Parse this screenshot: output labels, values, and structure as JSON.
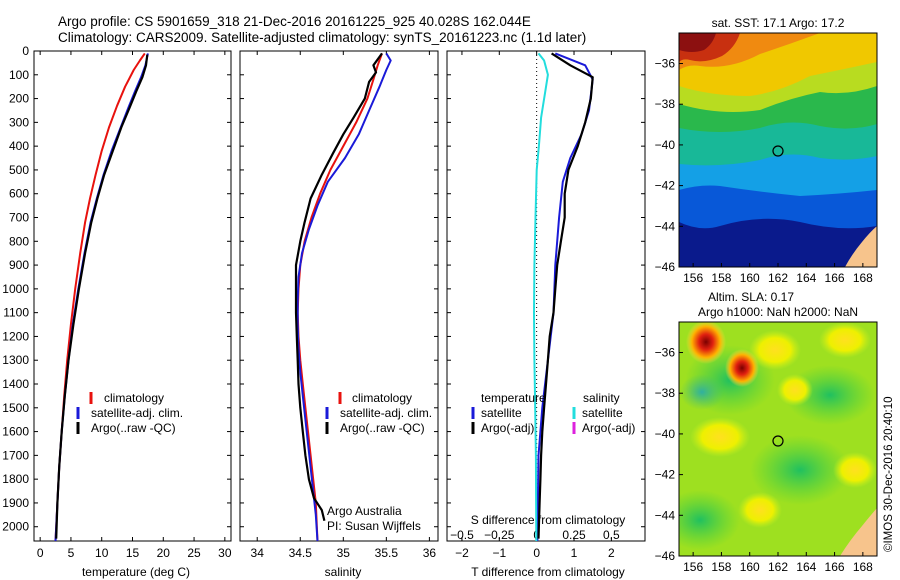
{
  "header": {
    "line1": "Argo profile: CS 5901659_318 21-Dec-2016 20161225_925 40.028S 162.044E",
    "line2": "Climatology: CARS2009. Satellite-adjusted climatology: synTS_20161223.nc (1.1d later)"
  },
  "footer": "©IMOS 30-Dec-2016 20:40:10",
  "depth_ticks": [
    "0",
    "100",
    "200",
    "300",
    "400",
    "500",
    "600",
    "700",
    "800",
    "900",
    "1000",
    "1100",
    "1200",
    "1300",
    "1400",
    "1500",
    "1600",
    "1700",
    "1800",
    "1900",
    "2000"
  ],
  "colors": {
    "climatology": "#e8120e",
    "satellite": "#1a1ad8",
    "argo": "#000000",
    "sal_satellite": "#22dddd",
    "sal_argo": "#dd22dd"
  },
  "chart_data": [
    {
      "type": "line",
      "id": "temperature",
      "xlabel": "temperature (deg C)",
      "xlim": [
        -1,
        31
      ],
      "ylim": [
        2060,
        0
      ],
      "xticks": [
        0,
        5,
        10,
        15,
        20,
        25,
        30
      ],
      "xtick_labels": [
        "0",
        "5",
        "10",
        "15",
        "20",
        "25",
        "30"
      ],
      "legend": [
        "climatology",
        "satellite-adj. clim.",
        "Argo(..raw -QC)"
      ],
      "series": [
        {
          "name": "climatology",
          "color": "climatology",
          "points": [
            [
              17,
              10
            ],
            [
              16.2,
              40
            ],
            [
              15.2,
              80
            ],
            [
              13.8,
              150
            ],
            [
              12.5,
              230
            ],
            [
              11.2,
              320
            ],
            [
              10,
              420
            ],
            [
              9,
              520
            ],
            [
              8.1,
              620
            ],
            [
              7.3,
              720
            ],
            [
              6.5,
              850
            ],
            [
              5.7,
              1000
            ],
            [
              5,
              1150
            ],
            [
              4.4,
              1300
            ],
            [
              3.9,
              1450
            ],
            [
              3.5,
              1600
            ],
            [
              3.1,
              1750
            ],
            [
              2.8,
              1900
            ],
            [
              2.5,
              2060
            ]
          ]
        },
        {
          "name": "satellite-adj. clim.",
          "color": "satellite",
          "points": [
            [
              17.5,
              10
            ],
            [
              17.1,
              60
            ],
            [
              16.4,
              110
            ],
            [
              15.4,
              170
            ],
            [
              14.3,
              240
            ],
            [
              13.1,
              320
            ],
            [
              11.6,
              420
            ],
            [
              10.3,
              520
            ],
            [
              9.2,
              620
            ],
            [
              8.2,
              720
            ],
            [
              7.2,
              850
            ],
            [
              6.2,
              1000
            ],
            [
              5.3,
              1150
            ],
            [
              4.6,
              1300
            ],
            [
              4,
              1450
            ],
            [
              3.5,
              1600
            ],
            [
              3.1,
              1750
            ],
            [
              2.8,
              1900
            ],
            [
              2.5,
              2060
            ]
          ]
        },
        {
          "name": "Argo(..raw -QC)",
          "color": "argo",
          "points": [
            [
              17.4,
              15
            ],
            [
              17.2,
              60
            ],
            [
              16.6,
              110
            ],
            [
              15.6,
              170
            ],
            [
              14.5,
              240
            ],
            [
              13.2,
              320
            ],
            [
              11.8,
              420
            ],
            [
              10.4,
              520
            ],
            [
              9.3,
              620
            ],
            [
              8.3,
              720
            ],
            [
              7.3,
              850
            ],
            [
              6.3,
              1000
            ],
            [
              5.4,
              1150
            ],
            [
              4.6,
              1300
            ],
            [
              4,
              1450
            ],
            [
              3.5,
              1600
            ],
            [
              3.1,
              1750
            ],
            [
              2.8,
              1900
            ],
            [
              2.6,
              2050
            ]
          ]
        }
      ]
    },
    {
      "type": "line",
      "id": "salinity",
      "xlabel": "salinity",
      "xlim": [
        33.8,
        36.1
      ],
      "ylim": [
        2060,
        0
      ],
      "xticks": [
        34,
        34.5,
        35,
        35.5,
        36
      ],
      "xtick_labels": [
        "34",
        "34.5",
        "35",
        "35.5",
        "36"
      ],
      "legend": [
        "climatology",
        "satellite-adj. clim.",
        "Argo(..raw -QC)"
      ],
      "annotation": [
        "Argo Australia",
        "PI: Susan Wijffels"
      ],
      "series": [
        {
          "name": "climatology",
          "color": "climatology",
          "points": [
            [
              35.45,
              10
            ],
            [
              35.4,
              60
            ],
            [
              35.35,
              120
            ],
            [
              35.28,
              200
            ],
            [
              35.15,
              300
            ],
            [
              35,
              400
            ],
            [
              34.85,
              500
            ],
            [
              34.73,
              600
            ],
            [
              34.63,
              700
            ],
            [
              34.55,
              800
            ],
            [
              34.5,
              900
            ],
            [
              34.48,
              1000
            ],
            [
              34.47,
              1100
            ],
            [
              34.48,
              1200
            ],
            [
              34.5,
              1300
            ],
            [
              34.53,
              1400
            ],
            [
              34.56,
              1500
            ],
            [
              34.59,
              1600
            ],
            [
              34.62,
              1700
            ],
            [
              34.65,
              1800
            ],
            [
              34.68,
              1900
            ],
            [
              34.7,
              2060
            ]
          ]
        },
        {
          "name": "satellite-adj. clim.",
          "color": "satellite",
          "points": [
            [
              35.5,
              10
            ],
            [
              35.55,
              40
            ],
            [
              35.5,
              80
            ],
            [
              35.42,
              150
            ],
            [
              35.3,
              250
            ],
            [
              35.18,
              350
            ],
            [
              35.02,
              450
            ],
            [
              34.82,
              550
            ],
            [
              34.7,
              650
            ],
            [
              34.6,
              750
            ],
            [
              34.52,
              850
            ],
            [
              34.48,
              950
            ],
            [
              34.47,
              1050
            ],
            [
              34.47,
              1150
            ],
            [
              34.48,
              1250
            ],
            [
              34.5,
              1350
            ],
            [
              34.53,
              1450
            ],
            [
              34.56,
              1550
            ],
            [
              34.59,
              1650
            ],
            [
              34.62,
              1750
            ],
            [
              34.65,
              1850
            ],
            [
              34.68,
              1950
            ],
            [
              34.7,
              2060
            ]
          ]
        },
        {
          "name": "Argo(..raw -QC)",
          "color": "argo",
          "points": [
            [
              35.45,
              10
            ],
            [
              35.35,
              60
            ],
            [
              35.38,
              90
            ],
            [
              35.3,
              130
            ],
            [
              35.25,
              200
            ],
            [
              35.12,
              280
            ],
            [
              35,
              350
            ],
            [
              34.88,
              430
            ],
            [
              34.75,
              520
            ],
            [
              34.62,
              620
            ],
            [
              34.55,
              720
            ],
            [
              34.5,
              800
            ],
            [
              34.45,
              900
            ],
            [
              34.45,
              1000
            ],
            [
              34.45,
              1100
            ],
            [
              34.46,
              1200
            ],
            [
              34.47,
              1300
            ],
            [
              34.48,
              1400
            ],
            [
              34.5,
              1500
            ],
            [
              34.53,
              1600
            ],
            [
              34.56,
              1700
            ],
            [
              34.6,
              1800
            ],
            [
              34.66,
              1880
            ],
            [
              34.75,
              1930
            ],
            [
              34.78,
              1975
            ]
          ]
        }
      ]
    },
    {
      "type": "line",
      "id": "differences",
      "xlabel": "T difference from climatology",
      "xlim": [
        -2.4,
        2.9
      ],
      "ylim": [
        2060,
        0
      ],
      "xticks": [
        -2,
        -1,
        0,
        1,
        2
      ],
      "xtick_labels": [
        "−2",
        "−1",
        "0",
        "1",
        "2"
      ],
      "top_xlabel": "S difference from climatology",
      "top_xticks": [
        -0.5,
        -0.25,
        0,
        0.25,
        0.5
      ],
      "top_xtick_labels": [
        "−0.5",
        "−0.25",
        "0",
        "0.25",
        "0.5"
      ],
      "legend_temperature": {
        "title": "temperature",
        "items": [
          "satellite",
          "Argo(-adj)"
        ]
      },
      "legend_salinity": {
        "title": "salinity",
        "items": [
          "satellite",
          "Argo(-adj)"
        ]
      },
      "series": [
        {
          "name": "temperature satellite",
          "color": "satellite",
          "points": [
            [
              0.5,
              10
            ],
            [
              1.3,
              60
            ],
            [
              1.5,
              120
            ],
            [
              1.4,
              250
            ],
            [
              1.2,
              350
            ],
            [
              0.9,
              450
            ],
            [
              0.7,
              550
            ],
            [
              0.6,
              700
            ],
            [
              0.5,
              900
            ],
            [
              0.45,
              1100
            ],
            [
              0.3,
              1300
            ],
            [
              0.15,
              1500
            ],
            [
              0.05,
              1700
            ],
            [
              0.02,
              2060
            ]
          ]
        },
        {
          "name": "temperature Argo(-adj)",
          "color": "argo",
          "points": [
            [
              0.4,
              10
            ],
            [
              0.9,
              60
            ],
            [
              1.5,
              110
            ],
            [
              1.45,
              200
            ],
            [
              1.3,
              300
            ],
            [
              1.1,
              400
            ],
            [
              0.85,
              500
            ],
            [
              0.75,
              600
            ],
            [
              0.75,
              700
            ],
            [
              0.65,
              800
            ],
            [
              0.55,
              900
            ],
            [
              0.5,
              1000
            ],
            [
              0.45,
              1100
            ],
            [
              0.35,
              1200
            ],
            [
              0.3,
              1300
            ],
            [
              0.25,
              1400
            ],
            [
              0.2,
              1500
            ],
            [
              0.15,
              1600
            ],
            [
              0.12,
              1700
            ],
            [
              0.1,
              1800
            ],
            [
              0.08,
              1900
            ],
            [
              0.05,
              2050
            ]
          ]
        },
        {
          "name": "salinity satellite",
          "color": "sal_satellite",
          "points": [
            [
              0.05,
              10
            ],
            [
              0.2,
              40
            ],
            [
              0.3,
              100
            ],
            [
              0.22,
              180
            ],
            [
              0.12,
              280
            ],
            [
              0.06,
              400
            ],
            [
              0.0,
              500
            ],
            [
              -0.03,
              700
            ],
            [
              -0.06,
              900
            ],
            [
              -0.07,
              1100
            ],
            [
              -0.06,
              1300
            ],
            [
              -0.04,
              1500
            ],
            [
              -0.02,
              1700
            ],
            [
              -0.01,
              2060
            ]
          ]
        }
      ]
    },
    {
      "type": "heatmap",
      "id": "sst_map",
      "title": "sat. SST: 17.1 Argo: 17.2",
      "xlim": [
        155,
        169
      ],
      "ylim": [
        -46,
        -34.5
      ],
      "xticks": [
        156,
        158,
        160,
        162,
        164,
        166,
        168
      ],
      "yticks": [
        -36,
        -38,
        -40,
        -42,
        -44,
        -46
      ],
      "marker": [
        162.04,
        -40.03
      ]
    },
    {
      "type": "heatmap",
      "id": "sla_map",
      "title": "Altim. SLA: 0.17",
      "subtitle": "Argo h1000: NaN h2000: NaN",
      "xlim": [
        155,
        169
      ],
      "ylim": [
        -46,
        -34.5
      ],
      "xticks": [
        156,
        158,
        160,
        162,
        164,
        166,
        168
      ],
      "yticks": [
        -36,
        -38,
        -40,
        -42,
        -44,
        -46
      ],
      "marker": [
        162.04,
        -40.03
      ]
    }
  ]
}
